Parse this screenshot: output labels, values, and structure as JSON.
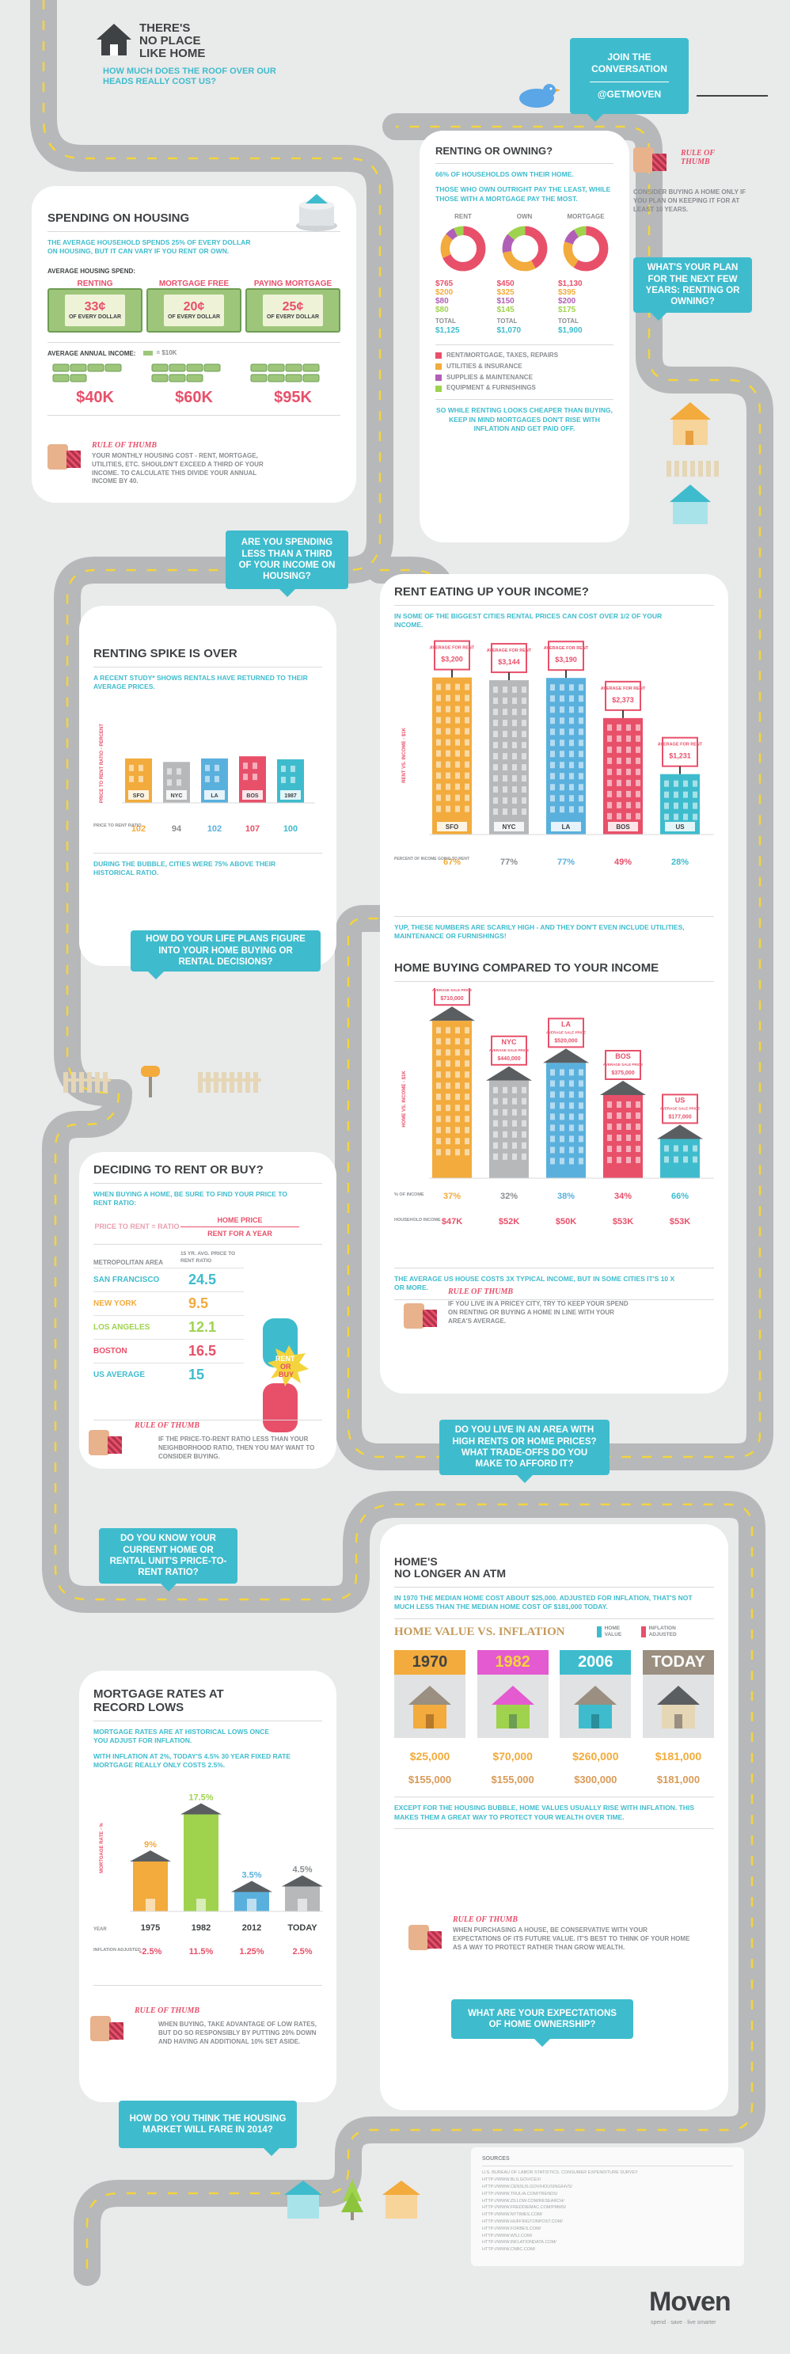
{
  "header": {
    "title": "THERE'S NO PLACE LIKE HOME",
    "title_lines": [
      "THERE'S",
      "NO PLACE",
      "LIKE HOME"
    ],
    "subtitle": "HOW MUCH DOES THE ROOF OVER OUR HEADS REALLY COST US?",
    "join": "JOIN THE CONVERSATION",
    "handle": "@GETMOVEN"
  },
  "spending": {
    "title": "SPENDING ON HOUSING",
    "intro": "THE AVERAGE HOUSEHOLD SPENDS 25% OF EVERY DOLLAR ON HOUSING, BUT IT CAN VARY IF YOU RENT OR OWN.",
    "avg_label": "AVERAGE HOUSING SPEND:",
    "groups": [
      {
        "label": "RENTING",
        "amount": "33¢",
        "note": "OF EVERY DOLLAR",
        "income": "$40K"
      },
      {
        "label": "MORTGAGE FREE",
        "amount": "20¢",
        "note": "OF EVERY DOLLAR",
        "income": "$60K"
      },
      {
        "label": "PAYING MORTGAGE",
        "amount": "25¢",
        "note": "OF EVERY DOLLAR",
        "income": "$95K"
      }
    ],
    "income_label": "AVERAGE ANNUAL INCOME:",
    "legend": "= $10K",
    "rot_title": "RULE OF THUMB",
    "rot_text": "YOUR MONTHLY HOUSING COST - RENT, MORTGAGE, UTILITIES, ETC. SHOULDN'T EXCEED A THIRD OF YOUR INCOME. TO CALCULATE THIS DIVIDE YOUR ANNUAL INCOME BY 40."
  },
  "renting_owning": {
    "title": "RENTING OR OWNING?",
    "intro": "66% OF HOUSEHOLDS OWN THEIR HOME.",
    "note": "THOSE WHO OWN OUTRIGHT PAY THE LEAST, WHILE THOSE WITH A MORTGAGE PAY THE MOST.",
    "columns": [
      {
        "label": "RENT",
        "values": [
          "$765",
          "$200",
          "$80",
          "$80"
        ],
        "total_label": "TOTAL",
        "total": "$1,125",
        "slices": [
          68,
          18,
          7,
          7
        ]
      },
      {
        "label": "OWN",
        "values": [
          "$450",
          "$325",
          "$150",
          "$145"
        ],
        "total_label": "TOTAL",
        "total": "$1,070",
        "slices": [
          42,
          30,
          14,
          14
        ]
      },
      {
        "label": "MORTGAGE",
        "values": [
          "$1,130",
          "$395",
          "$200",
          "$175"
        ],
        "total_label": "TOTAL",
        "total": "$1,900",
        "slices": [
          59,
          21,
          11,
          9
        ]
      }
    ],
    "legend": [
      {
        "label": "RENT/MORTGAGE, TAXES, REPAIRS",
        "color": "#e8506a"
      },
      {
        "label": "UTILITIES & INSURANCE",
        "color": "#f2ab3c"
      },
      {
        "label": "SUPPLIES & MAINTENANCE",
        "color": "#b15fb6"
      },
      {
        "label": "EQUIPMENT & FURNISHINGS",
        "color": "#9fd34e"
      }
    ],
    "footer": "SO WHILE RENTING LOOKS CHEAPER THAN BUYING, KEEP IN MIND MORTGAGES DON'T RISE WITH INFLATION AND GET PAID OFF.",
    "rot_title": "RULE OF THUMB",
    "rot_text": "CONSIDER BUYING A HOME ONLY IF YOU PLAN ON KEEPING IT FOR AT LEAST 10 YEARS.",
    "question": "WHAT'S YOUR PLAN FOR THE NEXT FEW YEARS: RENTING OR OWNING?"
  },
  "q_third": "ARE YOU SPENDING LESS THAN A THIRD OF YOUR INCOME ON HOUSING?",
  "spike": {
    "title": "RENTING SPIKE IS OVER",
    "intro": "A RECENT STUDY* SHOWS RENTALS HAVE RETURNED TO THEIR AVERAGE PRICES.",
    "ylabel": "PRICE TO RENT RATIO - PERCENT",
    "row_label": "PRICE TO RENT RATIO",
    "footer": "DURING THE BUBBLE, CITIES WERE 75% ABOVE THEIR HISTORICAL RATIO.",
    "question": "HOW DO YOUR LIFE PLANS FIGURE INTO YOUR HOME BUYING OR RENTAL DECISIONS?"
  },
  "rent_income": {
    "title": "RENT EATING UP YOUR INCOME?",
    "intro": "IN SOME OF THE BIGGEST CITIES RENTAL PRICES CAN COST OVER 1/2 OF YOUR INCOME.",
    "ylabel": "RENT VS. INCOME - $1K",
    "row_label": "PERCENT OF INCOME GOING TO RENT",
    "footer": "YUP, THESE NUMBERS ARE SCARILY HIGH - AND THEY DON'T EVEN INCLUDE UTILITIES, MAINTENANCE OR FURNISHINGS!",
    "sign": "AVERAGE FOR RENT"
  },
  "buying": {
    "title": "HOME BUYING COMPARED TO YOUR INCOME",
    "ylabel": "HOME VS. INCOME - $1K",
    "row1": "% OF INCOME",
    "row2": "HOUSEHOLD INCOME",
    "sign": "AVERAGE SALE PRICE",
    "footer": "THE AVERAGE US HOUSE COSTS 3X TYPICAL INCOME, BUT IN SOME CITIES IT'S 10 X OR MORE.",
    "rot_title": "RULE OF THUMB",
    "rot_text": "IF YOU LIVE IN A PRICEY CITY, TRY TO KEEP YOUR SPEND ON RENTING OR BUYING A HOME IN LINE WITH YOUR AREA'S AVERAGE.",
    "question": "DO YOU LIVE IN AN AREA WITH HIGH RENTS OR HOME PRICES? WHAT TRADE-OFFS DO YOU MAKE TO AFFORD IT?"
  },
  "decide": {
    "title": "DECIDING TO RENT OR BUY?",
    "intro": "WHEN BUYING A HOME, BE SURE TO FIND YOUR PRICE TO RENT RATIO:",
    "formula_left": "PRICE TO RENT = RATIO",
    "formula_top": "HOME PRICE",
    "formula_bottom": "RENT FOR A YEAR",
    "col1": "METROPOLITAN AREA",
    "col2": "15 YR. AVG. PRICE TO RENT RATIO",
    "rows": [
      {
        "city": "SAN FRANCISCO",
        "val": "24.5",
        "color": "#3ebccd"
      },
      {
        "city": "NEW YORK",
        "val": "9.5",
        "color": "#f2ab3c"
      },
      {
        "city": "LOS ANGELES",
        "val": "12.1",
        "color": "#9fd34e"
      },
      {
        "city": "BOSTON",
        "val": "16.5",
        "color": "#e8506a"
      },
      {
        "city": "US AVERAGE",
        "val": "15",
        "color": "#3ebccd"
      }
    ],
    "rent": "RENT",
    "or": "OR",
    "buy": "BUY",
    "rot_title": "RULE OF THUMB",
    "rot_text": "IF THE PRICE-TO-RENT RATIO LESS THAN YOUR NEIGHBORHOOD RATIO, THEN YOU MAY WANT TO CONSIDER BUYING.",
    "question": "DO YOU KNOW YOUR CURRENT HOME OR RENTAL UNIT'S PRICE-TO-RENT RATIO?"
  },
  "atm": {
    "title": "HOME'S NO LONGER AN ATM",
    "title_lines": [
      "HOME'S",
      "NO LONGER AN ATM"
    ],
    "intro": "IN 1970 THE MEDIAN HOME COST ABOUT $25,000. ADJUSTED FOR INFLATION, THAT'S NOT MUCH LESS THAN THE MEDIAN HOME COST OF $181,000 TODAY.",
    "sub": "HOME VALUE VS. INFLATION",
    "leg1": "HOME VALUE",
    "leg2": "INFLATION ADJUSTED",
    "years": [
      {
        "year": "1970",
        "value": "$25,000",
        "adj": "$155,000",
        "color": "#f2ab3c"
      },
      {
        "year": "1982",
        "value": "$70,000",
        "adj": "$155,000",
        "color": "#e45ad0"
      },
      {
        "year": "2006",
        "value": "$260,000",
        "adj": "$300,000",
        "color": "#3ebccd"
      },
      {
        "year": "TODAY",
        "value": "$181,000",
        "adj": "$181,000",
        "color": "#9a8f80"
      }
    ],
    "footer": "EXCEPT FOR THE HOUSING BUBBLE, HOME VALUES USUALLY RISE WITH INFLATION. THIS MAKES THEM A GREAT WAY TO PROTECT YOUR WEALTH OVER TIME.",
    "rot_title": "RULE OF THUMB",
    "rot_text": "WHEN PURCHASING A HOUSE, BE CONSERVATIVE WITH YOUR EXPECTATIONS OF ITS FUTURE VALUE. IT'S BEST TO THINK OF YOUR HOME AS A WAY TO PROTECT RATHER THAN GROW WEALTH.",
    "question": "WHAT ARE YOUR EXPECTATIONS OF HOME OWNERSHIP?"
  },
  "mortgage": {
    "title": "MORTGAGE RATES AT RECORD LOWS",
    "title_lines": [
      "MORTGAGE RATES AT",
      "RECORD LOWS"
    ],
    "intro": "MORTGAGE RATES ARE AT HISTORICAL LOWS ONCE YOU ADJUST FOR INFLATION.",
    "intro2": "WITH INFLATION AT 2%, TODAY'S 4.5% 30 YEAR FIXED RATE MORTGAGE REALLY ONLY COSTS 2.5%.",
    "ylabel": "MORTGAGE RATE - %",
    "row1": "YEAR",
    "row2": "INFLATION ADJUSTED",
    "rot_title": "RULE OF THUMB",
    "rot_text": "WHEN BUYING, TAKE ADVANTAGE OF LOW RATES, BUT DO SO RESPONSIBLY BY PUTTING 20% DOWN AND HAVING AN ADDITIONAL 10% SET ASIDE.",
    "question": "HOW DO YOU THINK THE HOUSING MARKET WILL FARE IN 2014?"
  },
  "sources": {
    "title": "SOURCES",
    "lines": [
      "U.S. BUREAU OF LABOR STATISTICS. CONSUMER EXPENDITURE SURVEY",
      "HTTP://WWW.BLS.GOV/CEX/",
      "HTTP://WWW.CENSUS.GOV/HOUSING/HVS/",
      "HTTP://WWW.TRULIA.COM/TRENDS/",
      "HTTP://WWW.ZILLOW.COM/RESEARCH/",
      "HTTP://WWW.FREDDIEMAC.COM/PMMS/",
      "HTTP://WWW.NYTIMES.COM/",
      "HTTP://WWW.HUFFINGTONPOST.COM/",
      "HTTP://WWW.FORBES.COM/",
      "HTTP://WWW.WSJ.COM/",
      "HTTP://WWW.INFLATIONDATA.COM/",
      "HTTP://WWW.CNBC.COM/"
    ]
  },
  "footer": {
    "brand": "Moven",
    "tagline": "spend · save · live smarter"
  },
  "chart_data": [
    {
      "type": "bar",
      "categories": [
        "SFO",
        "NYC",
        "LA",
        "BOS",
        "1987"
      ],
      "values": [
        102,
        94,
        102,
        107,
        100
      ],
      "ylabel": "PRICE TO RENT RATIO - PERCENT"
    },
    {
      "type": "bar",
      "categories": [
        "SFO",
        "NYC",
        "LA",
        "BOS",
        "US"
      ],
      "values": [
        3200,
        3144,
        3190,
        2373,
        1231
      ],
      "labels": [
        "$3,200",
        "$3,144",
        "$3,190",
        "$2,373",
        "$1,231"
      ],
      "percent_of_income": [
        "67%",
        "77%",
        "77%",
        "49%",
        "28%"
      ],
      "ylabel": "RENT VS. INCOME - $1K"
    },
    {
      "type": "bar",
      "categories": [
        "SFO",
        "NYC",
        "LA",
        "BOS",
        "US"
      ],
      "values": [
        710000,
        440000,
        520000,
        375000,
        177000
      ],
      "labels": [
        "$710,000",
        "$440,000",
        "$520,000",
        "$375,000",
        "$177,000"
      ],
      "percent_of_income": [
        "37%",
        "32%",
        "38%",
        "34%",
        "66%"
      ],
      "household_income": [
        "$47K",
        "$52K",
        "$50K",
        "$53K",
        "$53K"
      ],
      "ylabel": "HOME VS. INCOME - $1K"
    },
    {
      "type": "bar",
      "categories": [
        "1975",
        "1982",
        "2012",
        "TODAY"
      ],
      "values": [
        9,
        17.5,
        3.5,
        4.5
      ],
      "labels": [
        "9%",
        "17.5%",
        "3.5%",
        "4.5%"
      ],
      "inflation_adjusted": [
        "-2.5%",
        "11.5%",
        "1.25%",
        "2.5%"
      ],
      "ylabel": "MORTGAGE RATE - %"
    }
  ]
}
